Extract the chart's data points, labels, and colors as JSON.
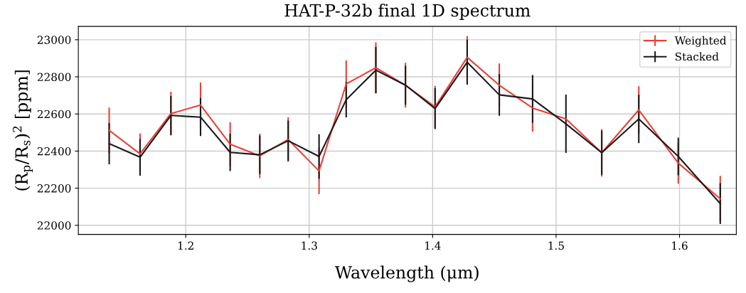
{
  "chart_data": {
    "type": "line",
    "title": "HAT-P-32b final 1D spectrum",
    "xlabel": "Wavelength (μm)",
    "ylabel": "(R$_{p}$/R$_{s}$)$^{2}$ [ppm]",
    "x": [
      1.138,
      1.163,
      1.188,
      1.212,
      1.236,
      1.26,
      1.283,
      1.308,
      1.33,
      1.354,
      1.378,
      1.402,
      1.428,
      1.454,
      1.481,
      1.508,
      1.537,
      1.567,
      1.599,
      1.633
    ],
    "series": [
      {
        "name": "Weighted",
        "color": "#e8403a",
        "values": [
          22512,
          22385,
          22602,
          22648,
          22437,
          22374,
          22462,
          22293,
          22762,
          22849,
          22755,
          22638,
          22905,
          22755,
          22632,
          22573,
          22391,
          22622,
          22335,
          22143
        ],
        "errors": [
          122,
          110,
          118,
          122,
          118,
          120,
          120,
          125,
          126,
          137,
          121,
          113,
          115,
          117,
          127,
          null,
          128,
          127,
          111,
          124
        ]
      },
      {
        "name": "Stacked",
        "color": "#1a1a1a",
        "values": [
          22440,
          22367,
          22592,
          22583,
          22393,
          22380,
          22456,
          22371,
          22677,
          22836,
          22755,
          22629,
          22879,
          22703,
          22681,
          22547,
          22391,
          22573,
          22371,
          22117
        ],
        "errors": [
          111,
          99,
          105,
          102,
          101,
          104,
          109,
          120,
          95,
          125,
          105,
          110,
          121,
          113,
          129,
          157,
          119,
          130,
          102,
          110
        ]
      }
    ],
    "xlim": [
      1.113,
      1.646
    ],
    "ylim": [
      21951,
      23072
    ],
    "xticks": [
      1.2,
      1.3,
      1.4,
      1.5,
      1.6
    ],
    "yticks": [
      22000,
      22200,
      22400,
      22600,
      22800,
      23000
    ],
    "grid": true,
    "legend": "top right"
  }
}
